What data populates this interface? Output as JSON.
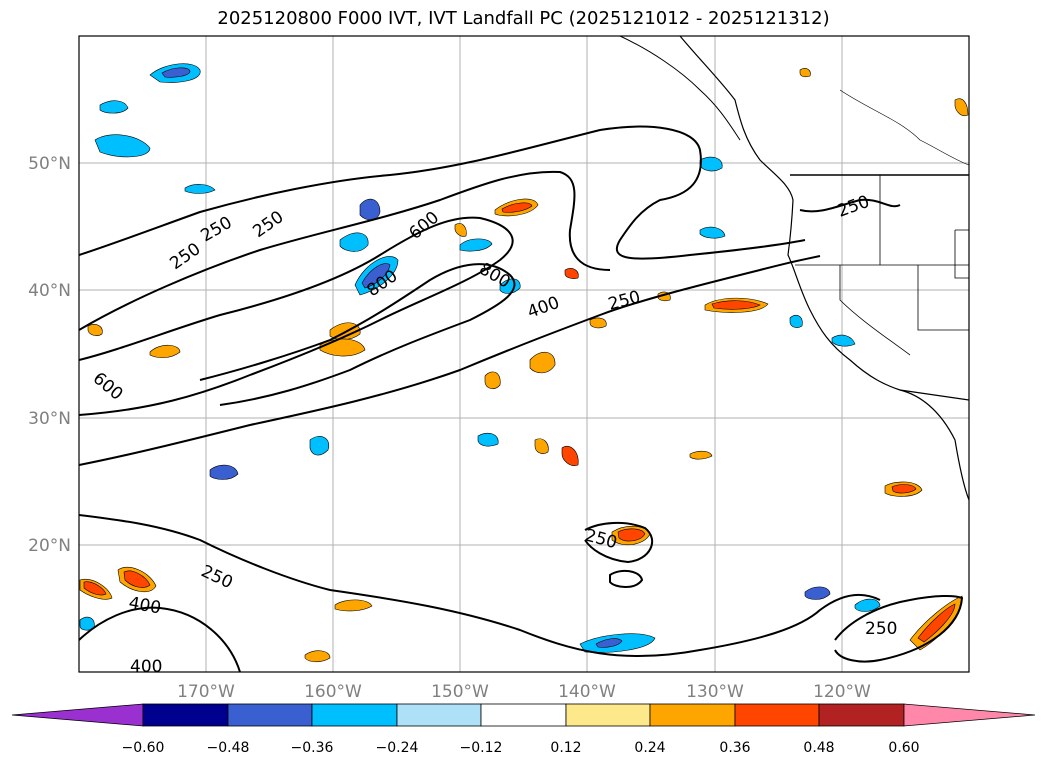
{
  "title": "2025120800 F000 IVT, IVT Landfall PC (2025121012 - 2025121312)",
  "map": {
    "lat_labels": [
      "50°N",
      "40°N",
      "30°N",
      "20°N"
    ],
    "lon_labels": [
      "170°W",
      "160°W",
      "150°W",
      "140°W",
      "130°W",
      "120°W"
    ],
    "contour_labels": [
      "250",
      "250",
      "250",
      "600",
      "800",
      "800",
      "400",
      "250",
      "250",
      "600",
      "250",
      "400",
      "250",
      "250",
      "400"
    ],
    "extent": {
      "lon_min": -180,
      "lon_max": -110,
      "lat_min": 10,
      "lat_max": 60
    }
  },
  "colorbar": {
    "ticks": [
      "−0.60",
      "−0.48",
      "−0.36",
      "−0.24",
      "−0.12",
      "0.12",
      "0.24",
      "0.36",
      "0.48",
      "0.60"
    ],
    "colors": [
      "#9b30d0",
      "#000090",
      "#3a5fd0",
      "#00bfff",
      "#aee0f8",
      "#ffffff",
      "#fde98c",
      "#ffa500",
      "#ff4500",
      "#b22222",
      "#ff88aa"
    ]
  },
  "legend_colors": {
    "neg_strong": "#3a5fd0",
    "neg_mid": "#00bfff",
    "pos_mid": "#ffa500",
    "pos_strong": "#ff4500"
  }
}
